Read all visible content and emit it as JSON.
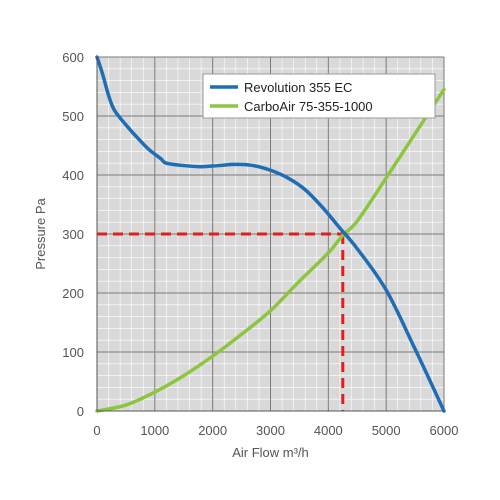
{
  "chart_data": {
    "type": "line",
    "title": "",
    "xlabel": "Air Flow m³/h",
    "ylabel": "Pressure Pa",
    "xlim": [
      0,
      6000
    ],
    "ylim": [
      0,
      600
    ],
    "x_ticks": [
      0,
      1000,
      2000,
      3000,
      4000,
      5000,
      6000
    ],
    "y_ticks": [
      0,
      100,
      200,
      300,
      400,
      500,
      600
    ],
    "grid": true,
    "minor_grid": true,
    "background": "#d9d9d9",
    "legend_position": "top-right",
    "series": [
      {
        "name": "Revolution 355 EC",
        "color": "#1f6db5",
        "x": [
          0,
          100,
          200,
          300,
          500,
          700,
          900,
          1100,
          1200,
          1500,
          1800,
          2100,
          2400,
          2700,
          3000,
          3300,
          3600,
          3900,
          4200,
          4500,
          5000,
          5500,
          6000
        ],
        "y": [
          600,
          570,
          535,
          510,
          485,
          463,
          443,
          428,
          420,
          416,
          414,
          416,
          418,
          416,
          408,
          395,
          375,
          345,
          310,
          275,
          205,
          105,
          0
        ]
      },
      {
        "name": "CarboAir 75-355-1000",
        "color": "#8cc63f",
        "x": [
          0,
          500,
          1000,
          1500,
          2000,
          2500,
          3000,
          3500,
          4000,
          4250,
          4500,
          5000,
          5500,
          6000
        ],
        "y": [
          0,
          10,
          32,
          60,
          93,
          130,
          170,
          220,
          268,
          298,
          322,
          395,
          470,
          545
        ]
      }
    ],
    "operating_point": {
      "x": 4250,
      "y": 300,
      "color": "#e02020"
    }
  }
}
